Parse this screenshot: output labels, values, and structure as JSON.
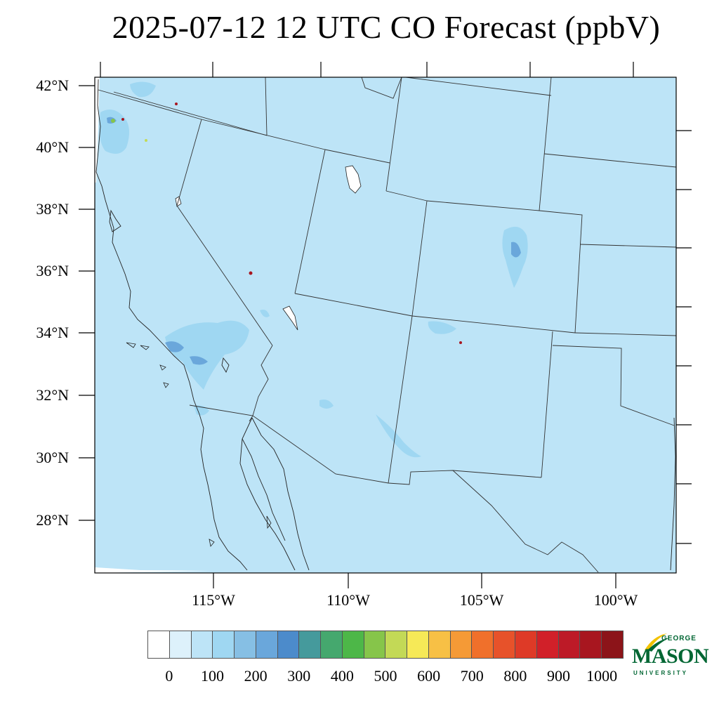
{
  "title": "2025-07-12 12 UTC CO Forecast (ppbV)",
  "map": {
    "region": "Southwestern United States and northwestern Mexico",
    "field_color": "#BDE4F7",
    "lat_labels": [
      "42°N",
      "40°N",
      "38°N",
      "36°N",
      "34°N",
      "32°N",
      "30°N",
      "28°N"
    ],
    "lon_labels": [
      "115°W",
      "110°W",
      "105°W",
      "100°W"
    ]
  },
  "colorbar": {
    "colors": [
      "#FFFFFF",
      "#DDF1FB",
      "#BDE4F7",
      "#9FD7F2",
      "#86BFE4",
      "#6AA7DB",
      "#4C8BCB",
      "#459A9C",
      "#45A86E",
      "#4DB748",
      "#86C54A",
      "#C3D956",
      "#F6E957",
      "#F7C045",
      "#F59A36",
      "#F0702B",
      "#E7522A",
      "#DE3A27",
      "#D12029",
      "#BD1A27",
      "#A8161F",
      "#8C1419"
    ],
    "labels": [
      "0",
      "100",
      "200",
      "300",
      "400",
      "500",
      "600",
      "700",
      "800",
      "900",
      "1000"
    ]
  },
  "logo": {
    "line1": "GEORGE",
    "line2": "MASON",
    "line3": "UNIVERSITY",
    "color": "#006633",
    "accent": "#F2C200"
  }
}
